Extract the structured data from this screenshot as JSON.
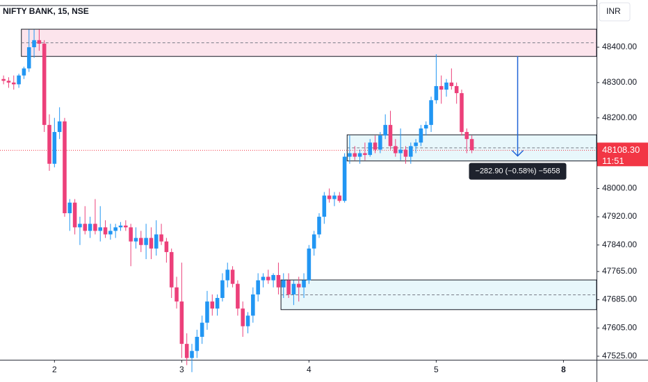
{
  "chart_data": {
    "type": "candlestick",
    "title": "NIFTY BANK, 15, NSE",
    "currency": "INR",
    "up_color": "#2196f3",
    "down_color": "#ec407a",
    "xlim": [
      -0.7,
      116.5
    ],
    "xticks": [
      {
        "value": 10,
        "label": "2"
      },
      {
        "value": 35,
        "label": "3"
      },
      {
        "value": 60,
        "label": "4"
      },
      {
        "value": 85,
        "label": "5"
      },
      {
        "value": 110,
        "label": "8"
      }
    ],
    "ylim": [
      47515,
      48518
    ],
    "yticks": [
      {
        "value": 48400,
        "label": "48400.00"
      },
      {
        "value": 48300,
        "label": "48300.00"
      },
      {
        "value": 48200,
        "label": "48200.00"
      },
      {
        "value": 48000,
        "label": "48000.00"
      },
      {
        "value": 47920,
        "label": "47920.00"
      },
      {
        "value": 47840,
        "label": "47840.00"
      },
      {
        "value": 47765,
        "label": "47765.00"
      },
      {
        "value": 47685,
        "label": "47685.00"
      },
      {
        "value": 47605,
        "label": "47605.00"
      },
      {
        "value": 47525,
        "label": "47525.00"
      }
    ],
    "open": [
      48310,
      48305,
      48300,
      48295,
      48320,
      48340,
      48400,
      48420,
      48410,
      48180,
      48070,
      48160,
      48190,
      47930,
      47960,
      47890,
      47900,
      47880,
      47900,
      47880,
      47890,
      47870,
      47880,
      47890,
      47895,
      47890,
      47850,
      47860,
      47840,
      47860,
      47830,
      47870,
      47850,
      47820,
      47720,
      47680,
      47560,
      47520,
      47540,
      47580,
      47620,
      47680,
      47660,
      47690,
      47740,
      47770,
      47730,
      47660,
      47610,
      47640,
      47700,
      47740,
      47750,
      47740,
      47755,
      47720,
      47740,
      47700,
      47730,
      47720,
      47740,
      47830,
      47870,
      47920,
      47980,
      47970,
      47980,
      47965,
      48090,
      48100,
      48090,
      48100,
      48095,
      48130,
      48110,
      48150,
      48180,
      48120,
      48100,
      48110,
      48090,
      48120,
      48130,
      48170,
      48180,
      48250,
      48290,
      48280,
      48300,
      48290,
      48270,
      48160,
      48140
    ],
    "high": [
      48320,
      48315,
      48320,
      48325,
      48345,
      48450,
      48450,
      48450,
      48420,
      48210,
      48200,
      48230,
      48200,
      47970,
      47970,
      47920,
      47950,
      47920,
      47970,
      47950,
      47910,
      47900,
      47900,
      47905,
      47910,
      47900,
      47890,
      47880,
      47900,
      47890,
      47910,
      47900,
      47860,
      47830,
      47750,
      47790,
      47590,
      47560,
      47600,
      47640,
      47710,
      47700,
      47700,
      47760,
      47790,
      47780,
      47740,
      47680,
      47650,
      47720,
      47760,
      47760,
      47770,
      47760,
      47790,
      47760,
      47760,
      47740,
      47750,
      47760,
      47840,
      47880,
      47930,
      47990,
      48000,
      47990,
      47990,
      48100,
      48150,
      48120,
      48110,
      48130,
      48140,
      48150,
      48160,
      48210,
      48220,
      48140,
      48170,
      48120,
      48130,
      48140,
      48180,
      48190,
      48260,
      48380,
      48320,
      48310,
      48340,
      48300,
      48280,
      48170,
      48150
    ],
    "low": [
      48295,
      48285,
      48280,
      48285,
      48310,
      48330,
      48370,
      48390,
      48160,
      48050,
      48060,
      48140,
      47920,
      47880,
      47870,
      47840,
      47870,
      47860,
      47870,
      47850,
      47860,
      47855,
      47860,
      47880,
      47880,
      47780,
      47830,
      47820,
      47800,
      47800,
      47810,
      47840,
      47790,
      47690,
      47660,
      47520,
      47500,
      47480,
      47520,
      47560,
      47600,
      47640,
      47640,
      47680,
      47720,
      47720,
      47640,
      47580,
      47590,
      47620,
      47680,
      47720,
      47730,
      47720,
      47700,
      47690,
      47690,
      47670,
      47680,
      47690,
      47730,
      47810,
      47860,
      47900,
      47960,
      47950,
      47960,
      47960,
      48070,
      48080,
      48070,
      48080,
      48090,
      48100,
      48100,
      48140,
      48110,
      48090,
      48080,
      48070,
      48070,
      48100,
      48120,
      48150,
      48160,
      48240,
      48240,
      48260,
      48280,
      48240,
      48150,
      48100,
      48100
    ],
    "close": [
      48305,
      48300,
      48295,
      48320,
      48340,
      48400,
      48420,
      48410,
      48180,
      48070,
      48160,
      48190,
      47930,
      47960,
      47890,
      47900,
      47880,
      47900,
      47880,
      47890,
      47870,
      47880,
      47890,
      47895,
      47890,
      47850,
      47860,
      47840,
      47860,
      47830,
      47870,
      47850,
      47820,
      47720,
      47680,
      47560,
      47520,
      47540,
      47580,
      47620,
      47680,
      47660,
      47690,
      47740,
      47770,
      47730,
      47660,
      47610,
      47640,
      47700,
      47740,
      47750,
      47740,
      47755,
      47720,
      47740,
      47700,
      47730,
      47720,
      47740,
      47830,
      47870,
      47920,
      47980,
      47970,
      47980,
      47965,
      48090,
      48100,
      48090,
      48100,
      48095,
      48130,
      48110,
      48150,
      48180,
      48120,
      48100,
      48110,
      48090,
      48120,
      48130,
      48170,
      48180,
      48250,
      48290,
      48280,
      48300,
      48290,
      48270,
      48160,
      48140,
      48108.3
    ],
    "zones": [
      {
        "top": 48451,
        "bottom": 48374,
        "start": 4,
        "color": "#fce4ec"
      },
      {
        "top": 48152,
        "bottom": 48078,
        "start": 68,
        "color": "#e8f7fb"
      },
      {
        "top": 47741,
        "bottom": 47657,
        "start": 55,
        "color": "#e8f7fb"
      }
    ],
    "measure": {
      "from": 48375,
      "to": 48092,
      "at": 101,
      "label": "−282.90 (−0.58%) −5658",
      "color": "#1e63d6"
    },
    "last_price": {
      "value": 48108.3,
      "label": "48108.30",
      "countdown": "11:51",
      "color": "#f23645"
    }
  }
}
